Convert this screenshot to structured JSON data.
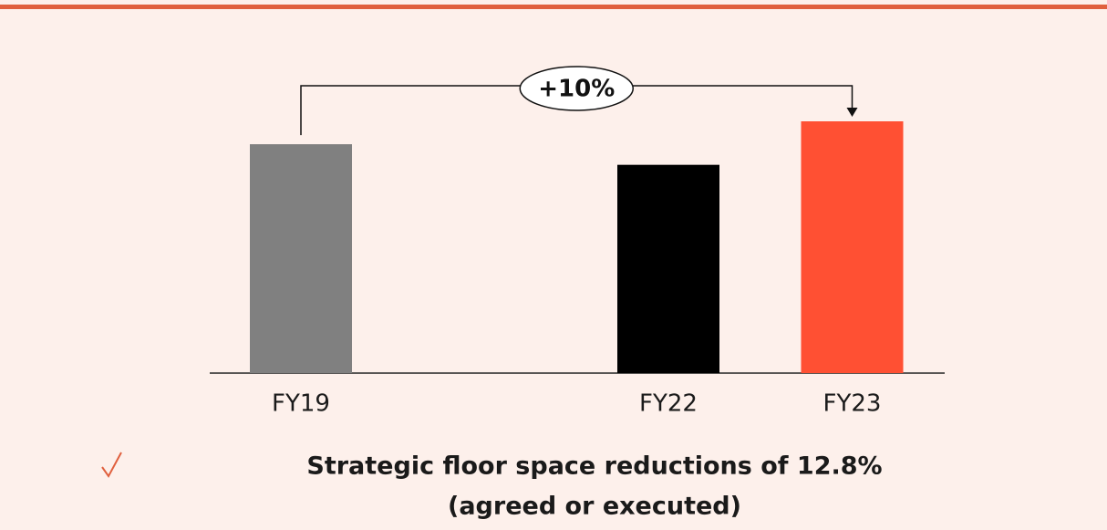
{
  "chart_data": {
    "type": "bar",
    "categories": [
      "FY19",
      null,
      "FY22",
      "FY23"
    ],
    "values": [
      100,
      null,
      91,
      110
    ],
    "colors": [
      "#808080",
      null,
      "#000000",
      "#ff5033"
    ],
    "annotation": "+10%",
    "note": [
      "Strategic floor space reductions of 12.8%",
      "(agreed or executed)"
    ]
  }
}
